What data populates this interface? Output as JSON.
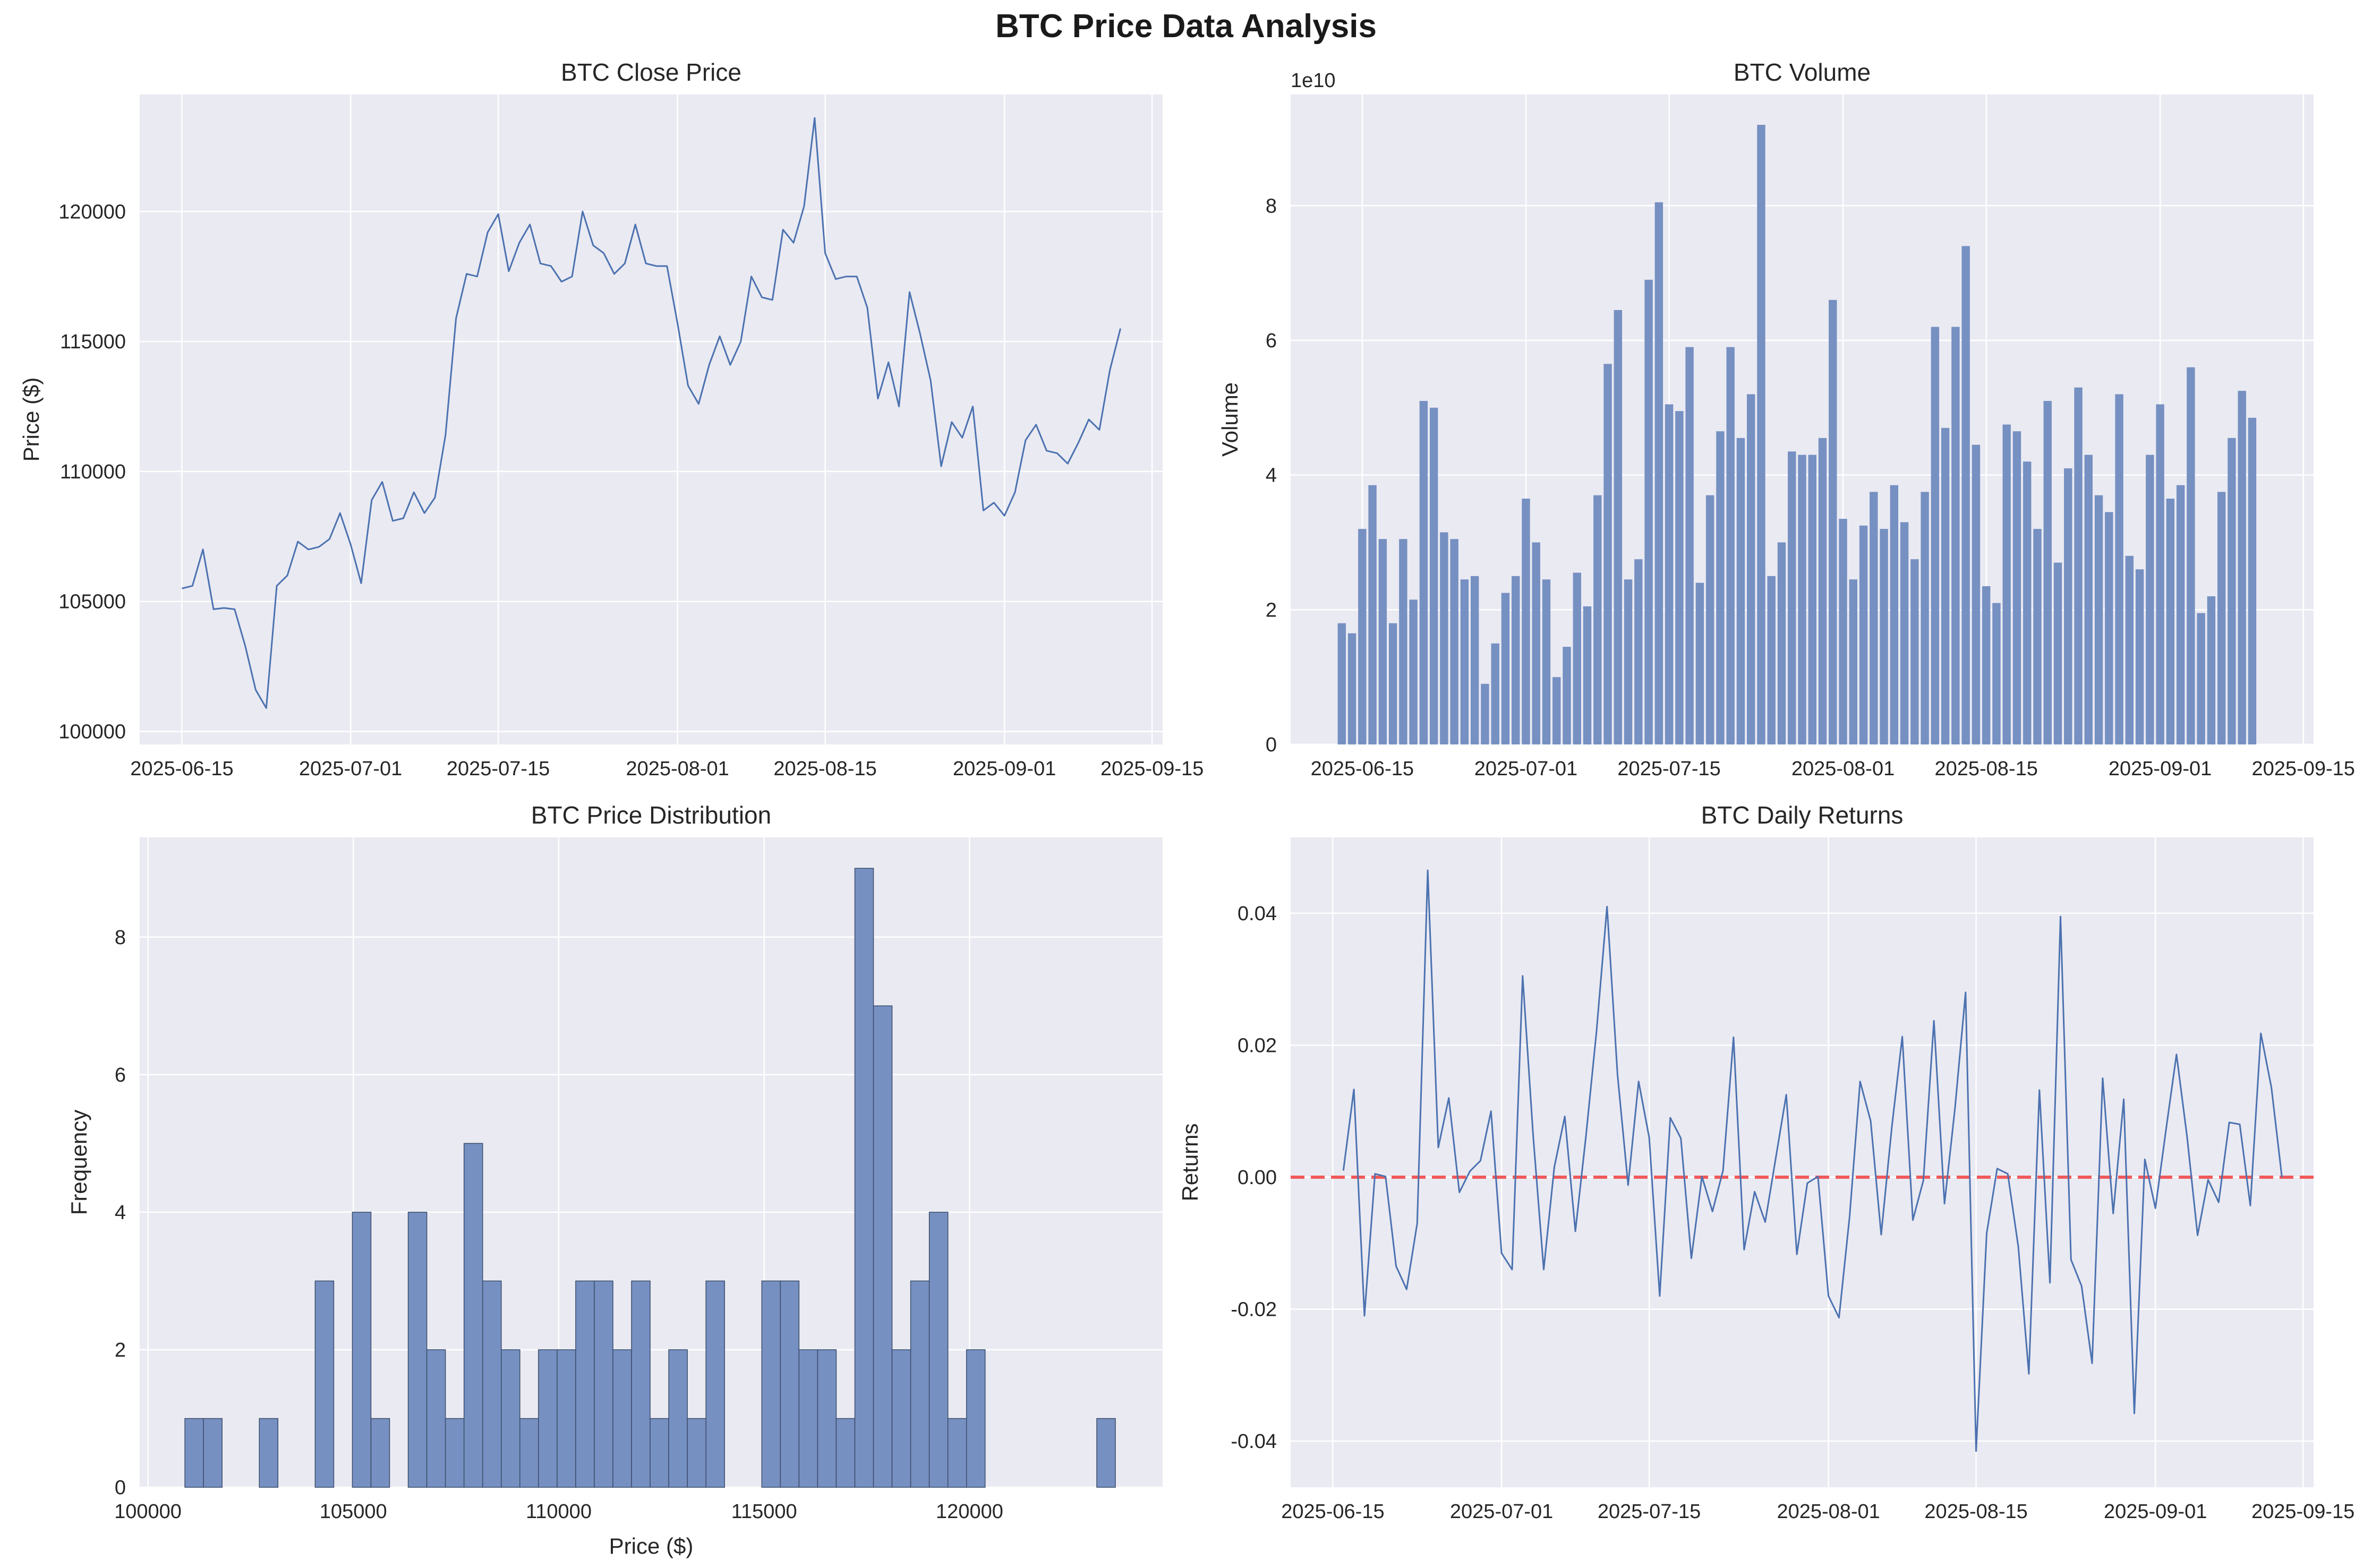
{
  "figure": {
    "title": "BTC Price Data Analysis"
  },
  "colors": {
    "face": "#eaeaf2",
    "grid": "#ffffff",
    "series": "#4c72b0",
    "bar": "#7690c2",
    "bar_edge": "#3c4d6a",
    "zero_line": "#f05a5a",
    "text": "#262626"
  },
  "chart_data": [
    {
      "id": "close",
      "type": "line",
      "title": "BTC Close Price",
      "xlabel": "",
      "ylabel": "Price ($)",
      "x_start": "2025-06-15",
      "xlim": [
        "2025-06-11",
        "2025-09-16"
      ],
      "ylim": [
        99500,
        124500
      ],
      "xticks": [
        "2025-06-15",
        "2025-07-01",
        "2025-07-15",
        "2025-08-01",
        "2025-08-15",
        "2025-09-01",
        "2025-09-15"
      ],
      "yticks": [
        100000,
        105000,
        110000,
        115000,
        120000
      ],
      "grid": true,
      "values": [
        105500,
        105600,
        107000,
        104700,
        104750,
        104700,
        103300,
        101600,
        100900,
        105600,
        106000,
        107300,
        107000,
        107100,
        107400,
        108400,
        107200,
        105700,
        108900,
        109600,
        108100,
        108200,
        109200,
        108400,
        109000,
        111400,
        115900,
        117600,
        117500,
        119200,
        119900,
        117700,
        118800,
        119500,
        118000,
        117900,
        117300,
        117500,
        120000,
        118700,
        118400,
        117600,
        118000,
        119500,
        118000,
        117900,
        117900,
        115700,
        113300,
        112600,
        114100,
        115200,
        114100,
        115000,
        117500,
        116700,
        116600,
        119300,
        118800,
        120200,
        123600,
        118400,
        117400,
        117500,
        117500,
        116300,
        112800,
        114200,
        112500,
        116900,
        115300,
        113500,
        110200,
        111900,
        111300,
        112500,
        108500,
        108800,
        108300,
        109200,
        111200,
        111800,
        110800,
        110700,
        110300,
        111100,
        112000,
        111600,
        113900,
        115500
      ]
    },
    {
      "id": "volume",
      "type": "bar",
      "title": "BTC Volume",
      "xlabel": "",
      "ylabel": "Volume",
      "y_offset_label": "1e10",
      "x_start": "2025-06-13",
      "xlim": [
        "2025-06-08",
        "2025-09-16"
      ],
      "ylim": [
        0,
        9.65
      ],
      "xticks": [
        "2025-06-15",
        "2025-07-01",
        "2025-07-15",
        "2025-08-01",
        "2025-08-15",
        "2025-09-01",
        "2025-09-15"
      ],
      "yticks": [
        0,
        2,
        4,
        6,
        8
      ],
      "grid": true,
      "values": [
        1.8,
        1.65,
        3.2,
        3.85,
        3.05,
        1.8,
        3.05,
        2.15,
        5.1,
        5.0,
        3.15,
        3.05,
        2.45,
        2.5,
        0.9,
        1.5,
        2.25,
        2.5,
        3.65,
        3.0,
        2.45,
        1.0,
        1.45,
        2.55,
        2.05,
        3.7,
        5.65,
        6.45,
        2.45,
        2.75,
        6.9,
        8.05,
        5.05,
        4.95,
        5.9,
        2.4,
        3.7,
        4.65,
        5.9,
        4.55,
        5.2,
        9.2,
        2.5,
        3.0,
        4.35,
        4.3,
        4.3,
        4.55,
        6.6,
        3.35,
        2.45,
        3.25,
        3.75,
        3.2,
        3.85,
        3.3,
        2.75,
        3.75,
        6.2,
        4.7,
        6.2,
        7.4,
        4.45,
        2.35,
        2.1,
        4.75,
        4.65,
        4.2,
        3.2,
        5.1,
        2.7,
        4.1,
        5.3,
        4.3,
        3.7,
        3.45,
        5.2,
        2.8,
        2.6,
        4.3,
        5.05,
        3.65,
        3.85,
        5.6,
        1.95,
        2.2,
        3.75,
        4.55,
        5.25,
        4.85
      ]
    },
    {
      "id": "distribution",
      "type": "bar",
      "title": "BTC Price Distribution",
      "xlabel": "Price ($)",
      "ylabel": "Frequency",
      "bin_start": 100900,
      "bin_width": 453,
      "xlim": [
        99800,
        124700
      ],
      "ylim": [
        0,
        9.45
      ],
      "xticks": [
        100000,
        105000,
        110000,
        115000,
        120000
      ],
      "yticks": [
        0,
        2,
        4,
        6,
        8
      ],
      "grid": true,
      "values": [
        1,
        1,
        0,
        0,
        1,
        0,
        0,
        3,
        0,
        4,
        1,
        0,
        4,
        2,
        1,
        5,
        3,
        2,
        1,
        2,
        2,
        3,
        3,
        2,
        3,
        1,
        2,
        1,
        3,
        0,
        0,
        3,
        3,
        2,
        2,
        1,
        9,
        7,
        2,
        3,
        4,
        1,
        2,
        0,
        0,
        0,
        0,
        0,
        0,
        1
      ]
    },
    {
      "id": "returns",
      "type": "line",
      "title": "BTC Daily Returns",
      "xlabel": "",
      "ylabel": "Returns",
      "x_start": "2025-06-16",
      "xlim": [
        "2025-06-11",
        "2025-09-16"
      ],
      "ylim": [
        -0.047,
        0.0515
      ],
      "xticks": [
        "2025-06-15",
        "2025-07-01",
        "2025-07-15",
        "2025-08-01",
        "2025-08-15",
        "2025-09-01",
        "2025-09-15"
      ],
      "yticks": [
        -0.04,
        -0.02,
        0.0,
        0.02,
        0.04
      ],
      "reference_line": 0,
      "grid": true,
      "values": [
        0.001,
        0.0133,
        -0.021,
        0.0005,
        0.0001,
        -0.0135,
        -0.017,
        -0.007,
        0.0465,
        0.0045,
        0.012,
        -0.0023,
        0.0009,
        0.0025,
        0.01,
        -0.0115,
        -0.014,
        0.0305,
        0.0062,
        -0.014,
        0.0015,
        0.0092,
        -0.0082,
        0.0062,
        0.022,
        0.041,
        0.0155,
        -0.0012,
        0.0145,
        0.006,
        -0.018,
        0.009,
        0.0059,
        -0.0123,
        0.0001,
        -0.0052,
        0.001,
        0.0212,
        -0.011,
        -0.0022,
        -0.0068,
        0.0029,
        0.0125,
        -0.0117,
        -0.0009,
        0.0001,
        -0.018,
        -0.0213,
        -0.006,
        0.0145,
        0.0085,
        -0.0087,
        0.0075,
        0.0213,
        -0.0065,
        -0.0005,
        0.0237,
        -0.004,
        0.0105,
        0.028,
        -0.0415,
        -0.0085,
        0.0013,
        0.0005,
        -0.0105,
        -0.0298,
        0.0132,
        -0.016,
        0.0395,
        -0.0125,
        -0.0165,
        -0.0282,
        0.015,
        -0.0055,
        0.0118,
        -0.0358,
        0.0027,
        -0.0047,
        0.0071,
        0.0186,
        0.0062,
        -0.0088,
        -0.0004,
        -0.0038,
        0.0083,
        0.008,
        -0.0043,
        0.0218,
        0.0136,
        0.0
      ]
    }
  ]
}
